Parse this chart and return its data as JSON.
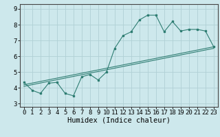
{
  "title": "",
  "xlabel": "Humidex (Indice chaleur)",
  "xlim": [
    -0.5,
    23.5
  ],
  "ylim": [
    2.8,
    9.3
  ],
  "xticks": [
    0,
    1,
    2,
    3,
    4,
    5,
    6,
    7,
    8,
    9,
    10,
    11,
    12,
    13,
    14,
    15,
    16,
    17,
    18,
    19,
    20,
    21,
    22,
    23
  ],
  "yticks": [
    3,
    4,
    5,
    6,
    7,
    8,
    9
  ],
  "bg_color": "#cde8ec",
  "line_color": "#2e7d72",
  "grid_color": "#b0d0d5",
  "series1_x": [
    0,
    1,
    2,
    3,
    4,
    5,
    6,
    7,
    8,
    9,
    10,
    11,
    12,
    13,
    14,
    15,
    16,
    17,
    18,
    19,
    20,
    21,
    22,
    23
  ],
  "series1_y": [
    4.35,
    3.85,
    3.65,
    4.3,
    4.35,
    3.65,
    3.5,
    4.7,
    4.85,
    4.5,
    5.0,
    6.5,
    7.3,
    7.55,
    8.3,
    8.6,
    8.6,
    7.55,
    8.2,
    7.6,
    7.7,
    7.7,
    7.6,
    6.6
  ],
  "series2_x": [
    0,
    23
  ],
  "series2_y": [
    4.2,
    6.6
  ],
  "series3_x": [
    0,
    23
  ],
  "series3_y": [
    4.1,
    6.5
  ],
  "font_family": "monospace",
  "xlabel_fontsize": 7.5,
  "tick_fontsize": 6.5
}
